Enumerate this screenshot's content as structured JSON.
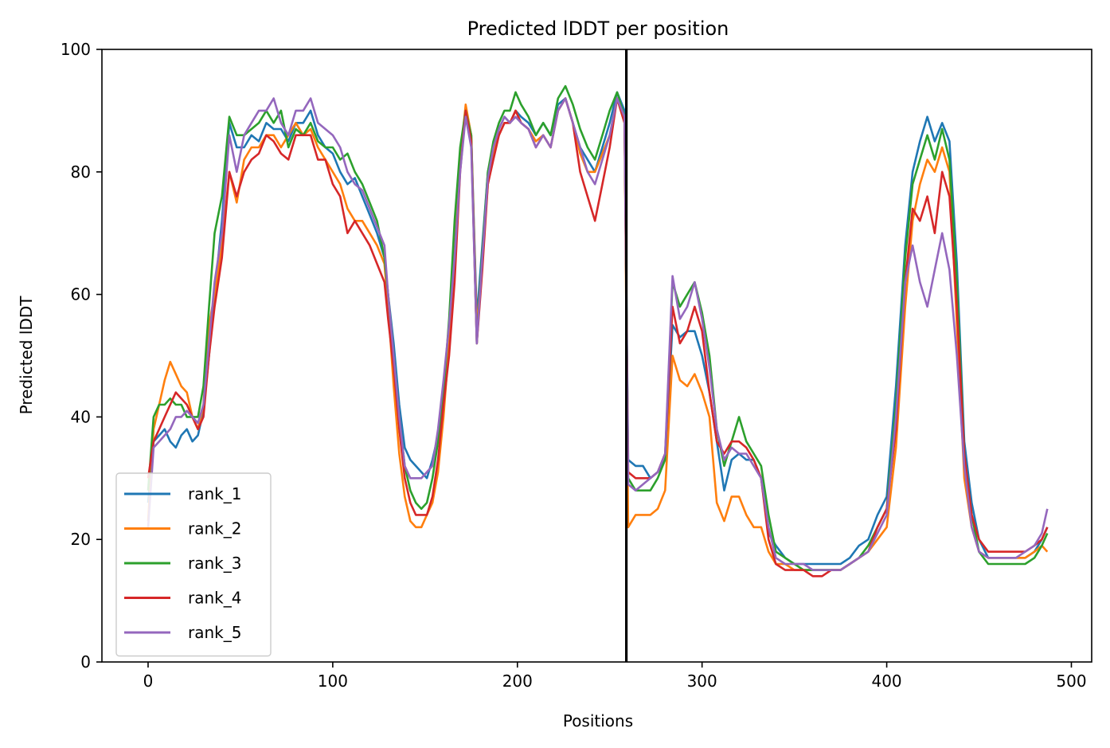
{
  "chart_data": {
    "type": "line",
    "title": "Predicted lDDT per position",
    "xlabel": "Positions",
    "ylabel": "Predicted lDDT",
    "xlim": [
      -25,
      511
    ],
    "ylim": [
      0,
      100
    ],
    "xticks": [
      0,
      100,
      200,
      300,
      400,
      500
    ],
    "yticks": [
      0,
      20,
      40,
      60,
      80,
      100
    ],
    "grid": false,
    "legend_position": "lower-left",
    "vline": {
      "x": 259,
      "color": "#000000"
    },
    "x": [
      0,
      3,
      6,
      9,
      12,
      15,
      18,
      21,
      24,
      27,
      30,
      33,
      36,
      40,
      44,
      48,
      52,
      56,
      60,
      64,
      68,
      72,
      76,
      80,
      84,
      88,
      92,
      96,
      100,
      104,
      108,
      112,
      116,
      120,
      124,
      128,
      130,
      133,
      136,
      139,
      142,
      145,
      148,
      151,
      154,
      157,
      160,
      163,
      166,
      169,
      172,
      175,
      178,
      181,
      184,
      187,
      190,
      193,
      196,
      199,
      202,
      206,
      210,
      214,
      218,
      222,
      226,
      230,
      234,
      238,
      242,
      246,
      250,
      254,
      258,
      260,
      264,
      268,
      272,
      276,
      280,
      284,
      288,
      292,
      296,
      300,
      304,
      308,
      312,
      316,
      320,
      324,
      328,
      332,
      336,
      340,
      345,
      350,
      355,
      360,
      365,
      370,
      375,
      380,
      385,
      390,
      395,
      400,
      405,
      410,
      414,
      418,
      422,
      426,
      430,
      434,
      438,
      442,
      446,
      450,
      455,
      460,
      465,
      470,
      475,
      480,
      484,
      487
    ],
    "series": [
      {
        "name": "rank_1",
        "color": "#1f77b4",
        "values": [
          26,
          36,
          37,
          38,
          36,
          35,
          37,
          38,
          36,
          37,
          41,
          50,
          60,
          72,
          88,
          84,
          84,
          86,
          85,
          88,
          87,
          87,
          85,
          88,
          88,
          90,
          86,
          84,
          83,
          80,
          78,
          79,
          76,
          73,
          70,
          66,
          60,
          52,
          42,
          35,
          33,
          32,
          31,
          30,
          33,
          37,
          43,
          54,
          70,
          82,
          90,
          86,
          56,
          68,
          80,
          84,
          87,
          89,
          88,
          90,
          89,
          88,
          86,
          88,
          86,
          91,
          92,
          88,
          84,
          82,
          80,
          84,
          88,
          93,
          90,
          33,
          32,
          32,
          30,
          31,
          33,
          55,
          53,
          54,
          54,
          50,
          44,
          36,
          28,
          33,
          34,
          33,
          33,
          30,
          21,
          19,
          17,
          16,
          16,
          16,
          16,
          16,
          16,
          17,
          19,
          20,
          24,
          27,
          45,
          68,
          80,
          85,
          89,
          85,
          88,
          85,
          65,
          36,
          26,
          20,
          17,
          17,
          17,
          17,
          17,
          18,
          20,
          22
        ]
      },
      {
        "name": "rank_2",
        "color": "#ff7f0e",
        "values": [
          23,
          38,
          42,
          46,
          49,
          47,
          45,
          44,
          40,
          38,
          42,
          55,
          60,
          68,
          80,
          75,
          82,
          84,
          84,
          86,
          86,
          84,
          86,
          88,
          86,
          87,
          84,
          82,
          80,
          78,
          74,
          72,
          72,
          70,
          68,
          65,
          58,
          45,
          34,
          27,
          23,
          22,
          22,
          24,
          26,
          31,
          40,
          52,
          66,
          82,
          91,
          86,
          54,
          66,
          78,
          83,
          86,
          88,
          88,
          90,
          88,
          87,
          85,
          86,
          84,
          90,
          92,
          88,
          83,
          80,
          80,
          83,
          86,
          92,
          88,
          22,
          24,
          24,
          24,
          25,
          28,
          50,
          46,
          45,
          47,
          44,
          40,
          26,
          23,
          27,
          27,
          24,
          22,
          22,
          18,
          16,
          16,
          15,
          15,
          15,
          15,
          15,
          15,
          16,
          17,
          18,
          20,
          22,
          35,
          58,
          72,
          78,
          82,
          80,
          84,
          80,
          55,
          30,
          22,
          18,
          17,
          17,
          17,
          17,
          17,
          18,
          19,
          18
        ]
      },
      {
        "name": "rank_3",
        "color": "#2ca02c",
        "values": [
          28,
          40,
          42,
          42,
          43,
          42,
          42,
          40,
          40,
          40,
          45,
          58,
          70,
          76,
          89,
          86,
          86,
          87,
          88,
          90,
          88,
          90,
          84,
          87,
          86,
          88,
          85,
          84,
          84,
          82,
          83,
          80,
          78,
          75,
          72,
          66,
          60,
          50,
          40,
          32,
          28,
          26,
          25,
          26,
          30,
          36,
          44,
          56,
          72,
          84,
          90,
          86,
          52,
          67,
          80,
          85,
          88,
          90,
          90,
          93,
          91,
          89,
          86,
          88,
          86,
          92,
          94,
          91,
          87,
          84,
          82,
          86,
          90,
          93,
          89,
          30,
          28,
          28,
          28,
          30,
          33,
          62,
          58,
          60,
          62,
          57,
          50,
          38,
          32,
          36,
          40,
          36,
          34,
          32,
          24,
          18,
          17,
          16,
          15,
          15,
          15,
          15,
          15,
          16,
          17,
          19,
          22,
          25,
          42,
          66,
          78,
          82,
          86,
          82,
          87,
          82,
          62,
          34,
          24,
          18,
          16,
          16,
          16,
          16,
          16,
          17,
          19,
          21
        ]
      },
      {
        "name": "rank_4",
        "color": "#d62728",
        "values": [
          30,
          36,
          38,
          40,
          42,
          44,
          43,
          42,
          40,
          38,
          40,
          50,
          58,
          66,
          80,
          76,
          80,
          82,
          83,
          86,
          85,
          83,
          82,
          86,
          86,
          86,
          82,
          82,
          78,
          76,
          70,
          72,
          70,
          68,
          65,
          62,
          56,
          48,
          38,
          30,
          26,
          24,
          24,
          24,
          27,
          33,
          42,
          50,
          62,
          80,
          90,
          85,
          52,
          64,
          78,
          82,
          86,
          88,
          88,
          90,
          88,
          87,
          84,
          86,
          84,
          90,
          92,
          88,
          80,
          76,
          72,
          78,
          84,
          92,
          88,
          31,
          30,
          30,
          30,
          31,
          34,
          58,
          52,
          54,
          58,
          54,
          44,
          36,
          34,
          36,
          36,
          35,
          33,
          30,
          20,
          16,
          15,
          15,
          15,
          14,
          14,
          15,
          15,
          16,
          17,
          18,
          22,
          25,
          38,
          62,
          74,
          72,
          76,
          70,
          80,
          76,
          58,
          34,
          24,
          20,
          18,
          18,
          18,
          18,
          18,
          19,
          20,
          22
        ]
      },
      {
        "name": "rank_5",
        "color": "#9467bd",
        "values": [
          22,
          35,
          36,
          37,
          38,
          40,
          40,
          41,
          40,
          39,
          42,
          52,
          62,
          70,
          86,
          80,
          86,
          88,
          90,
          90,
          92,
          88,
          86,
          90,
          90,
          92,
          88,
          87,
          86,
          84,
          80,
          78,
          77,
          74,
          71,
          68,
          60,
          50,
          40,
          32,
          30,
          30,
          30,
          31,
          32,
          38,
          46,
          55,
          66,
          80,
          89,
          84,
          52,
          66,
          79,
          84,
          87,
          89,
          88,
          89,
          88,
          87,
          84,
          86,
          84,
          90,
          92,
          88,
          84,
          80,
          78,
          82,
          86,
          92,
          89,
          29,
          28,
          29,
          30,
          31,
          34,
          63,
          56,
          58,
          62,
          56,
          48,
          38,
          33,
          35,
          34,
          34,
          32,
          30,
          22,
          17,
          16,
          16,
          16,
          15,
          15,
          15,
          15,
          16,
          17,
          18,
          21,
          24,
          40,
          62,
          68,
          62,
          58,
          64,
          70,
          64,
          50,
          32,
          22,
          18,
          17,
          17,
          17,
          17,
          18,
          19,
          21,
          25
        ]
      }
    ]
  }
}
